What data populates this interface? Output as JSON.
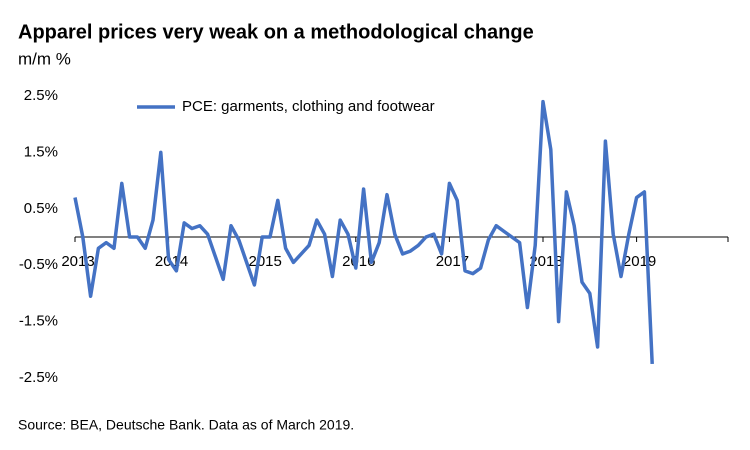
{
  "chart_data": {
    "type": "line",
    "title": "Apparel prices very weak on a methodological change",
    "subtitle": "m/m %",
    "source": "Source: BEA, Deutsche Bank. Data as of March 2019.",
    "categories": [
      "2013",
      null,
      null,
      null,
      null,
      null,
      null,
      null,
      null,
      null,
      null,
      null,
      "2014",
      null,
      null,
      null,
      null,
      null,
      null,
      null,
      null,
      null,
      null,
      null,
      "2015",
      null,
      null,
      null,
      null,
      null,
      null,
      null,
      null,
      null,
      null,
      null,
      "2016",
      null,
      null,
      null,
      null,
      null,
      null,
      null,
      null,
      null,
      null,
      null,
      "2017",
      null,
      null,
      null,
      null,
      null,
      null,
      null,
      null,
      null,
      null,
      null,
      "2018",
      null,
      null,
      null,
      null,
      null,
      null,
      null,
      null,
      null,
      null,
      null,
      "2019",
      null,
      null
    ],
    "series": [
      {
        "name": "PCE: garments, clothing and footwear",
        "color": "#4472c4",
        "values": [
          0.7,
          0.0,
          -1.05,
          -0.2,
          -0.1,
          -0.2,
          0.95,
          0.0,
          0.0,
          -0.2,
          0.3,
          1.5,
          -0.4,
          -0.6,
          0.25,
          0.15,
          0.2,
          0.05,
          -0.35,
          -0.75,
          0.2,
          -0.05,
          -0.45,
          -0.85,
          0.0,
          0.0,
          0.65,
          -0.2,
          -0.45,
          -0.3,
          -0.15,
          0.3,
          0.05,
          -0.7,
          0.3,
          0.05,
          -0.55,
          0.85,
          -0.45,
          -0.1,
          0.75,
          0.05,
          -0.3,
          -0.25,
          -0.15,
          0.0,
          0.05,
          -0.3,
          0.95,
          0.65,
          -0.6,
          -0.65,
          -0.55,
          -0.05,
          0.2,
          0.1,
          0.0,
          -0.1,
          -1.25,
          -0.15,
          2.4,
          1.55,
          -1.5,
          0.8,
          0.2,
          -0.8,
          -1.0,
          -1.95,
          1.7,
          0.05,
          -0.7,
          0.05,
          0.7,
          0.8,
          -2.25
        ]
      }
    ],
    "ylim": [
      -2.5,
      2.5
    ],
    "yticks": [
      {
        "value": 2.5,
        "label": "2.5%"
      },
      {
        "value": 1.5,
        "label": "1.5%"
      },
      {
        "value": 0.5,
        "label": "0.5%"
      },
      {
        "value": -0.5,
        "label": "-0.5%"
      },
      {
        "value": -1.5,
        "label": "-1.5%"
      },
      {
        "value": -2.5,
        "label": "-2.5%"
      }
    ],
    "grid": false,
    "legend": "top"
  }
}
